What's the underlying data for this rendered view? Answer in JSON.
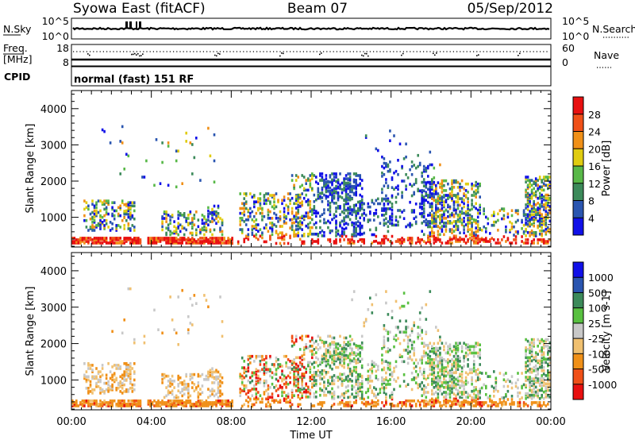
{
  "header": {
    "title_left": "Syowa East (fitACF)",
    "title_center": "Beam 07",
    "title_right": "05/Sep/2012"
  },
  "noise_panel": {
    "left_label": "N.Sky",
    "left_tick_top": "10^5",
    "left_tick_bottom": "10^0",
    "right_label": "N.Search",
    "right_tick_top": "10^5",
    "right_tick_bottom": "10^0"
  },
  "freq_panel": {
    "left_label_line1": "Freq.",
    "left_label_line2": "[MHz]",
    "left_tick_top": "18",
    "left_tick_bottom": "8",
    "right_label": "Nave",
    "right_tick_top": "60",
    "right_tick_bottom": "0"
  },
  "cpid": {
    "label": "CPID",
    "value": "normal (fast) 151 RF"
  },
  "colors": {
    "power": [
      "#1010e8",
      "#2a55b0",
      "#3c8a5a",
      "#58b848",
      "#e0cc10",
      "#f09018",
      "#f05018",
      "#e81010"
    ],
    "velocity": [
      "#e81010",
      "#f05018",
      "#f09018",
      "#f0c070",
      "#c8c8c8",
      "#58c040",
      "#3c8a5a",
      "#2a55b0",
      "#1010e8"
    ]
  },
  "chart_data": [
    {
      "type": "heatmap",
      "name": "power",
      "ylabel": "Slant Range [km]",
      "yticks": [
        "1000",
        "2000",
        "3000",
        "4000"
      ],
      "ylim": [
        180,
        4500
      ],
      "xlim": [
        0,
        24
      ],
      "colorbar_label": "Power [dB]",
      "colorbar_ticks": [
        "4",
        "8",
        "12",
        "16",
        "20",
        "24",
        "28"
      ]
    },
    {
      "type": "heatmap",
      "name": "velocity",
      "ylabel": "Slant Range [km]",
      "yticks": [
        "1000",
        "2000",
        "3000",
        "4000"
      ],
      "ylim": [
        180,
        4500
      ],
      "xlim": [
        0,
        24
      ],
      "xlabel": "Time UT",
      "xticks": [
        "00:00",
        "04:00",
        "08:00",
        "12:00",
        "16:00",
        "20:00",
        "00:00"
      ],
      "colorbar_label": "Velocity [m s-1]",
      "colorbar_ticks": [
        "-1000",
        "-500",
        "-100",
        "-25",
        "25",
        "100",
        "500",
        "1000"
      ]
    }
  ]
}
